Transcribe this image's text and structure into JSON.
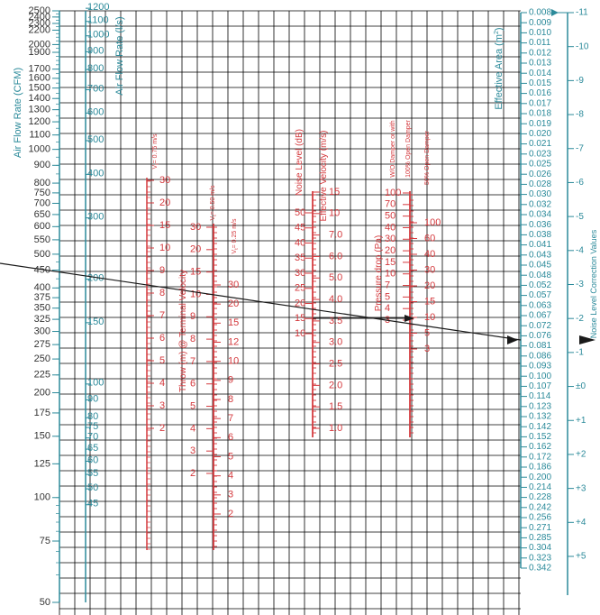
{
  "colors": {
    "teal": "#2b8a9a",
    "red": "#d4393d",
    "grid": "#000000",
    "line": "#1a1a1a"
  },
  "chart_data": {
    "type": "nomogram",
    "titles": {
      "cfm": "Air Flow Rate (CFM)",
      "ls": "Air Flow Rate (l/s)",
      "area": "Effective Area (m",
      "area_sup": "2",
      "noise_corr": "Noise Level Correction Values",
      "vt075": "V",
      "vt075_rest": "= 0.75 m/s",
      "vt050": "V",
      "vt050_rest": "= 0.50 m/s",
      "vt025": "V",
      "vt025_rest": "= 0.25 m/s",
      "throw": "Throw (m) @ Terminal Velocity",
      "noise": "Noise Level (dB)",
      "velocity": "Effective Velocity (m/s)",
      "pressure": "Pressure drop (Pa)",
      "wo_damper": "W/O Damper or with",
      "open100": "100% Open Damper",
      "open50": "50% Open Damper"
    },
    "cfm_axis": {
      "min": 50,
      "max": 2500,
      "labels": [
        "2500",
        "2400",
        "2300",
        "2200",
        "2000",
        "1900",
        "1700",
        "1600",
        "1500",
        "1400",
        "1300",
        "1200",
        "1100",
        "1000",
        "900",
        "800",
        "750",
        "700",
        "650",
        "600",
        "550",
        "500",
        "450",
        "400",
        "375",
        "350",
        "325",
        "300",
        "275",
        "250",
        "225",
        "200",
        "175",
        "150",
        "125",
        "100",
        "75",
        "50"
      ]
    },
    "ls_axis": {
      "labels": [
        "1200",
        "1100",
        "1000",
        "900",
        "800",
        "700",
        "600",
        "500",
        "400",
        "300",
        "200",
        "150",
        "100",
        "90",
        "80",
        "75",
        "70",
        "65",
        "60",
        "55",
        "50",
        "45"
      ]
    },
    "area_axis": {
      "labels": [
        "0.008",
        "0.009",
        "0.010",
        "0.011",
        "0.012",
        "0.013",
        "0.014",
        "0.015",
        "0.016",
        "0.017",
        "0.018",
        "0.019",
        "0.020",
        "0.021",
        "0.023",
        "0.025",
        "0.026",
        "0.028",
        "0.030",
        "0.032",
        "0.034",
        "0.036",
        "0.038",
        "0.041",
        "0.043",
        "0.045",
        "0.048",
        "0.052",
        "0.057",
        "0.063",
        "0.067",
        "0.072",
        "0.076",
        "0.081",
        "0.086",
        "0.093",
        "0.100",
        "0.107",
        "0.114",
        "0.123",
        "0.132",
        "0.142",
        "0.152",
        "0.162",
        "0.172",
        "0.186",
        "0.200",
        "0.214",
        "0.228",
        "0.242",
        "0.256",
        "0.271",
        "0.285",
        "0.304",
        "0.323",
        "0.342"
      ]
    },
    "noise_corr_axis": {
      "labels": [
        "-11",
        "-10",
        "-9",
        "-8",
        "-7",
        "-6",
        "-5",
        "-4",
        "-3",
        "-2",
        "-1",
        "±0",
        "+1",
        "+2",
        "+3",
        "+4",
        "+5"
      ]
    },
    "throw075": {
      "labels": [
        "30",
        "20",
        "15",
        "10",
        "9",
        "8",
        "7",
        "6",
        "5",
        "4",
        "3",
        "2"
      ]
    },
    "throw050": {
      "labels": [
        "30",
        "20",
        "15",
        "10",
        "9",
        "8",
        "7",
        "6",
        "5",
        "4",
        "3",
        "2"
      ]
    },
    "throw025": {
      "labels": [
        "30",
        "20",
        "15",
        "12",
        "10",
        "9",
        "8",
        "7",
        "6",
        "5",
        "4",
        "3",
        "2"
      ]
    },
    "noise_scale": {
      "labels": [
        "50",
        "45",
        "40",
        "35",
        "30",
        "25",
        "20",
        "15",
        "10"
      ]
    },
    "velocity_scale": {
      "labels": [
        "15",
        "10",
        "7.0",
        "6.0",
        "5.0",
        "4.0",
        "3.5",
        "3.0",
        "2.5",
        "2.0",
        "1.5",
        "1.0"
      ]
    },
    "pressure_scale": {
      "labels": [
        "100",
        "70",
        "50",
        "40",
        "30",
        "20",
        "15",
        "10",
        "7",
        "5",
        "4",
        "3"
      ]
    },
    "damper_scale": {
      "labels": [
        "100",
        "60",
        "40",
        "30",
        "20",
        "15",
        "10",
        "5",
        "3"
      ]
    }
  }
}
